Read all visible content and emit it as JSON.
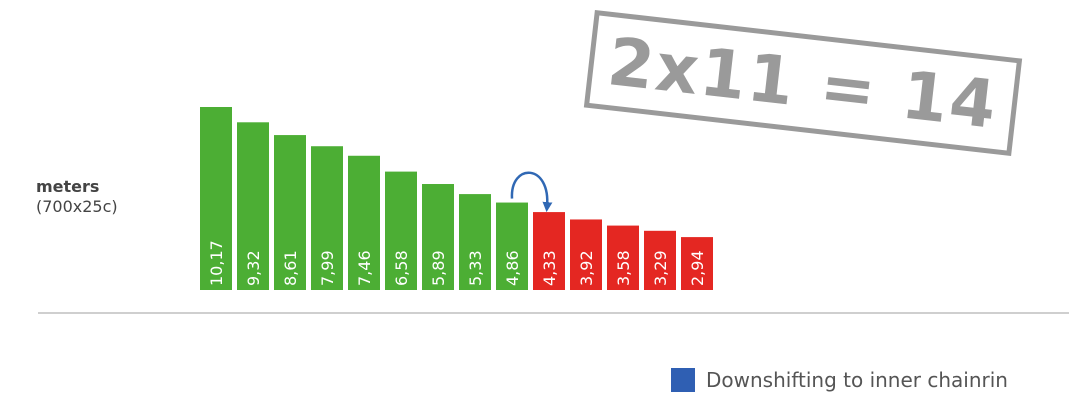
{
  "chart_data": {
    "type": "bar",
    "title": "",
    "ylabel": "meters",
    "ylabel_sub": "(700x25c)",
    "categories": [
      "10,17",
      "9,32",
      "8,61",
      "7,99",
      "7,46",
      "6,58",
      "5,89",
      "5,33",
      "4,86",
      "4,33",
      "3,92",
      "3,58",
      "3,29",
      "2,94"
    ],
    "values": [
      10.17,
      9.32,
      8.61,
      7.99,
      7.46,
      6.58,
      5.89,
      5.33,
      4.86,
      4.33,
      3.92,
      3.58,
      3.29,
      2.94
    ],
    "colors": [
      "#4cae34",
      "#4cae34",
      "#4cae34",
      "#4cae34",
      "#4cae34",
      "#4cae34",
      "#4cae34",
      "#4cae34",
      "#4cae34",
      "#e42722",
      "#e42722",
      "#e42722",
      "#e42722",
      "#e42722"
    ],
    "annotation": "2x11 = 14",
    "arrow_from_index": 8,
    "arrow_to_index": 9,
    "arrow_color": "#3068b4",
    "legend": [
      {
        "label": "Downshifting to inner chainrin",
        "color": "#2f5fb3"
      }
    ],
    "baseline_color": "#cfcfcf",
    "grid": false
  }
}
